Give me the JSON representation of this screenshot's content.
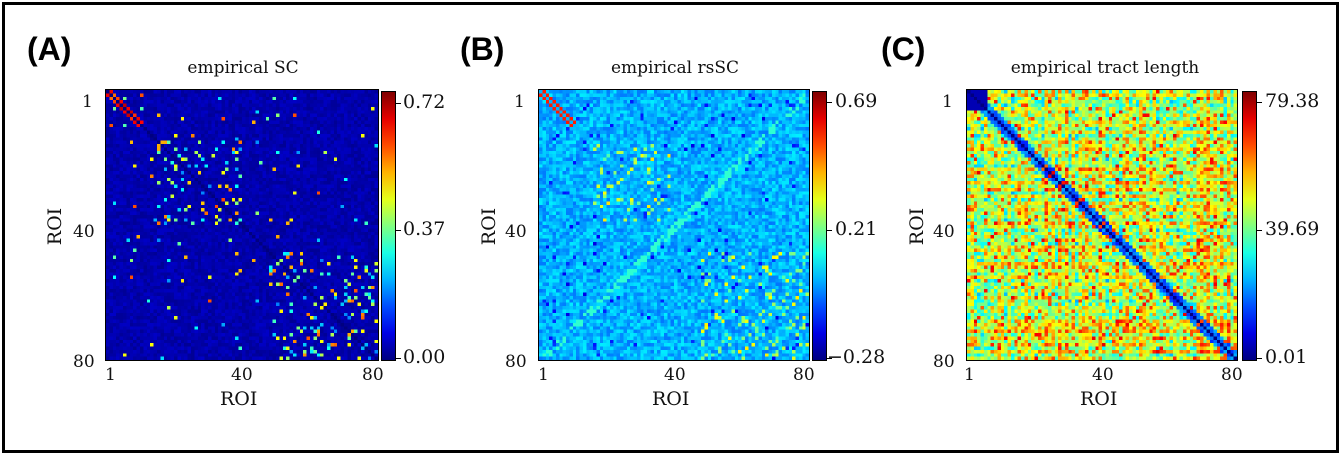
{
  "panels": [
    {
      "letter": "(A)",
      "title": "empirical SC"
    },
    {
      "letter": "(B)",
      "title": "empirical rsSC"
    },
    {
      "letter": "(C)",
      "title": "empirical tract length"
    }
  ],
  "chart_data": [
    {
      "type": "heatmap",
      "title": "empirical SC",
      "xlabel": "ROI",
      "ylabel": "ROI",
      "xticks": [
        "1",
        "40",
        "80"
      ],
      "yticks": [
        "1",
        "40",
        "80"
      ],
      "matrix_size": 80,
      "colormap": "jet",
      "colorbar_ticks": [
        "0.72",
        "0.37",
        "0.00"
      ],
      "vmin": 0.0,
      "vmax": 0.72
    },
    {
      "type": "heatmap",
      "title": "empirical rsSC",
      "xlabel": "ROI",
      "ylabel": "ROI",
      "xticks": [
        "1",
        "40",
        "80"
      ],
      "yticks": [
        "1",
        "40",
        "80"
      ],
      "matrix_size": 80,
      "colormap": "jet",
      "colorbar_ticks": [
        "0.69",
        "0.21",
        "−0.28"
      ],
      "vmin": -0.28,
      "vmax": 0.69
    },
    {
      "type": "heatmap",
      "title": "empirical tract length",
      "xlabel": "ROI",
      "ylabel": "ROI",
      "xticks": [
        "1",
        "40",
        "80"
      ],
      "yticks": [
        "1",
        "40",
        "80"
      ],
      "matrix_size": 80,
      "colormap": "jet",
      "colorbar_ticks": [
        "79.38",
        "39.69",
        "0.01"
      ],
      "vmin": 0.01,
      "vmax": 79.38
    }
  ]
}
